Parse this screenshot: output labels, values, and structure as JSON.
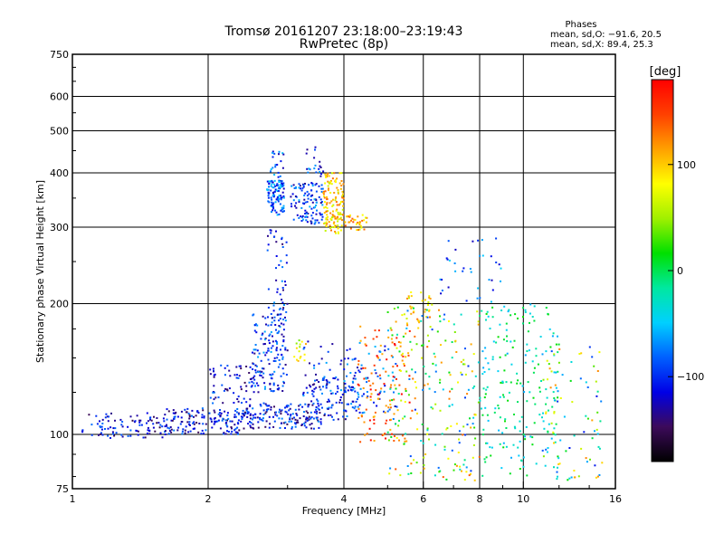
{
  "header": {
    "title_line1": "Tromsø 20161207 23:18:00–23:19:43",
    "title_line2": "RwPretec (8p)",
    "phase_title": "Phases",
    "phase_line1": "mean, sd,O: −91.6, 20.5",
    "phase_line2": "mean, sd,X:  89.4, 25.3"
  },
  "chart_data": {
    "type": "scatter",
    "xlabel": "Frequency [MHz]",
    "ylabel": "Stationary phase Virtual Height [km]",
    "xscale": "log",
    "yscale": "log",
    "xlim": [
      1,
      16
    ],
    "ylim": [
      75,
      750
    ],
    "x_ticks": [
      1,
      2,
      4,
      6,
      8,
      10,
      16
    ],
    "x_tick_labels": [
      "1",
      "2",
      "4",
      "6",
      "8",
      "10",
      "16"
    ],
    "x_grid": [
      2,
      4,
      6,
      8,
      10
    ],
    "y_ticks": [
      75,
      100,
      200,
      300,
      400,
      500,
      600,
      750
    ],
    "y_tick_labels": [
      "75",
      "100",
      "200",
      "300",
      "400",
      "500",
      "600",
      "750"
    ],
    "y_grid": [
      100,
      200,
      300,
      400,
      500,
      600
    ],
    "grid": true,
    "colorbar": {
      "label": "[deg]",
      "range": [
        -180,
        180
      ],
      "ticks": [
        -100,
        0,
        100
      ],
      "tick_labels": [
        "−100",
        "0",
        "100"
      ],
      "stops": [
        "#000000",
        "#3c0a5a",
        "#0000e6",
        "#0060ff",
        "#00d0ff",
        "#00e8a0",
        "#00e000",
        "#a0f000",
        "#ffff00",
        "#ffa000",
        "#ff4000",
        "#ff0000"
      ]
    },
    "series": [
      {
        "freq_range": [
          1.05,
          1.6
        ],
        "height_range": [
          98,
          112
        ],
        "phase": -115,
        "count": 90
      },
      {
        "freq_range": [
          1.6,
          2.4
        ],
        "height_range": [
          100,
          115
        ],
        "phase": -112,
        "count": 160
      },
      {
        "freq_range": [
          2.4,
          3.6
        ],
        "height_range": [
          103,
          118
        ],
        "phase": -108,
        "count": 170
      },
      {
        "freq_range": [
          3.3,
          4.4
        ],
        "height_range": [
          108,
          135
        ],
        "phase": -105,
        "count": 90
      },
      {
        "freq_range": [
          2.0,
          2.5
        ],
        "height_range": [
          118,
          145
        ],
        "phase": -110,
        "count": 60
      },
      {
        "freq_range": [
          2.5,
          3.0
        ],
        "height_range": [
          125,
          190
        ],
        "phase": -100,
        "count": 160
      },
      {
        "freq_range": [
          2.7,
          3.0
        ],
        "height_range": [
          190,
          300
        ],
        "phase": -105,
        "count": 45
      },
      {
        "freq_range": [
          2.7,
          2.95
        ],
        "height_range": [
          320,
          385
        ],
        "phase": -85,
        "count": 110
      },
      {
        "freq_range": [
          2.75,
          2.95
        ],
        "height_range": [
          390,
          450
        ],
        "phase": -90,
        "count": 20
      },
      {
        "freq_range": [
          3.05,
          3.6
        ],
        "height_range": [
          305,
          380
        ],
        "phase": -95,
        "count": 110
      },
      {
        "freq_range": [
          3.3,
          3.6
        ],
        "height_range": [
          390,
          460
        ],
        "phase": -100,
        "count": 20
      },
      {
        "freq_range": [
          3.6,
          4.0
        ],
        "height_range": [
          290,
          400
        ],
        "phase": 95,
        "count": 140
      },
      {
        "freq_range": [
          4.0,
          4.5
        ],
        "height_range": [
          295,
          320
        ],
        "phase": 105,
        "count": 35
      },
      {
        "freq_range": [
          3.1,
          3.3
        ],
        "height_range": [
          145,
          165
        ],
        "phase": 75,
        "count": 15
      },
      {
        "freq_range": [
          3.2,
          4.6
        ],
        "height_range": [
          120,
          165
        ],
        "phase": -95,
        "count": 60
      },
      {
        "freq_range": [
          4.0,
          5.2
        ],
        "height_range": [
          112,
          160
        ],
        "phase": -90,
        "count": 50
      },
      {
        "freq_range": [
          4.3,
          5.6
        ],
        "height_range": [
          95,
          180
        ],
        "phase": 140,
        "count": 110
      },
      {
        "freq_range": [
          5.5,
          6.3
        ],
        "height_range": [
          180,
          215
        ],
        "phase": 100,
        "count": 30
      },
      {
        "freq_range": [
          5.0,
          8.0
        ],
        "height_range": [
          78,
          200
        ],
        "phase": 20,
        "count": 230
      },
      {
        "freq_range": [
          6.5,
          9.0
        ],
        "height_range": [
          200,
          290
        ],
        "phase": -85,
        "count": 35
      },
      {
        "freq_range": [
          8.0,
          12.0
        ],
        "height_range": [
          80,
          200
        ],
        "phase": -20,
        "count": 200
      },
      {
        "freq_range": [
          11.0,
          15.0
        ],
        "height_range": [
          78,
          160
        ],
        "phase": 10,
        "count": 90
      }
    ]
  }
}
